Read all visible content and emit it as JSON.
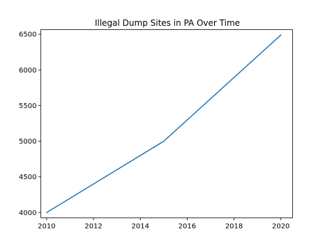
{
  "chart_data": {
    "type": "line",
    "title": "Illegal Dump Sites in PA Over Time",
    "xlabel": "",
    "ylabel": "",
    "x": [
      2010,
      2015,
      2020
    ],
    "series": [
      {
        "values": [
          4000,
          5000,
          6490
        ],
        "color": "#1f77b4"
      }
    ],
    "xlim": [
      2009.75,
      2020.5
    ],
    "ylim": [
      3925,
      6565
    ],
    "xticks": [
      2010,
      2012,
      2014,
      2016,
      2018,
      2020
    ],
    "yticks": [
      4000,
      4500,
      5000,
      5500,
      6000,
      6500
    ],
    "grid": false,
    "legend": false
  }
}
